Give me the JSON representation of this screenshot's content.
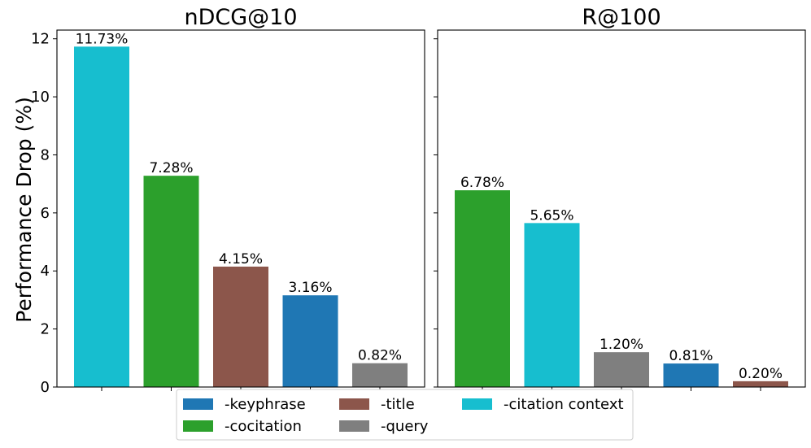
{
  "chart_data": {
    "type": "bar",
    "ylabel": "Performance Drop (%)",
    "ylim": [
      0,
      12.3
    ],
    "yticks": [
      0,
      2,
      4,
      6,
      8,
      10,
      12
    ],
    "grid": false,
    "shared_y": true,
    "legend": {
      "placement": "bottom-center",
      "entries": [
        {
          "name": "-keyphrase",
          "color": "#1f77b4"
        },
        {
          "name": "-cocitation",
          "color": "#2ca02c"
        },
        {
          "name": "-title",
          "color": "#8c564b"
        },
        {
          "name": "-query",
          "color": "#7f7f7f"
        },
        {
          "name": "-citation context",
          "color": "#17becf"
        }
      ]
    },
    "panels": [
      {
        "title": "nDCG@10",
        "bars": [
          {
            "series": "-citation context",
            "value": 11.73,
            "label": "11.73%",
            "color": "#17becf"
          },
          {
            "series": "-cocitation",
            "value": 7.28,
            "label": "7.28%",
            "color": "#2ca02c"
          },
          {
            "series": "-title",
            "value": 4.15,
            "label": "4.15%",
            "color": "#8c564b"
          },
          {
            "series": "-keyphrase",
            "value": 3.16,
            "label": "3.16%",
            "color": "#1f77b4"
          },
          {
            "series": "-query",
            "value": 0.82,
            "label": "0.82%",
            "color": "#7f7f7f"
          }
        ]
      },
      {
        "title": "R@100",
        "bars": [
          {
            "series": "-cocitation",
            "value": 6.78,
            "label": "6.78%",
            "color": "#2ca02c"
          },
          {
            "series": "-citation context",
            "value": 5.65,
            "label": "5.65%",
            "color": "#17becf"
          },
          {
            "series": "-query",
            "value": 1.2,
            "label": "1.20%",
            "color": "#7f7f7f"
          },
          {
            "series": "-keyphrase",
            "value": 0.81,
            "label": "0.81%",
            "color": "#1f77b4"
          },
          {
            "series": "-title",
            "value": 0.2,
            "label": "0.20%",
            "color": "#8c564b"
          }
        ]
      }
    ]
  }
}
